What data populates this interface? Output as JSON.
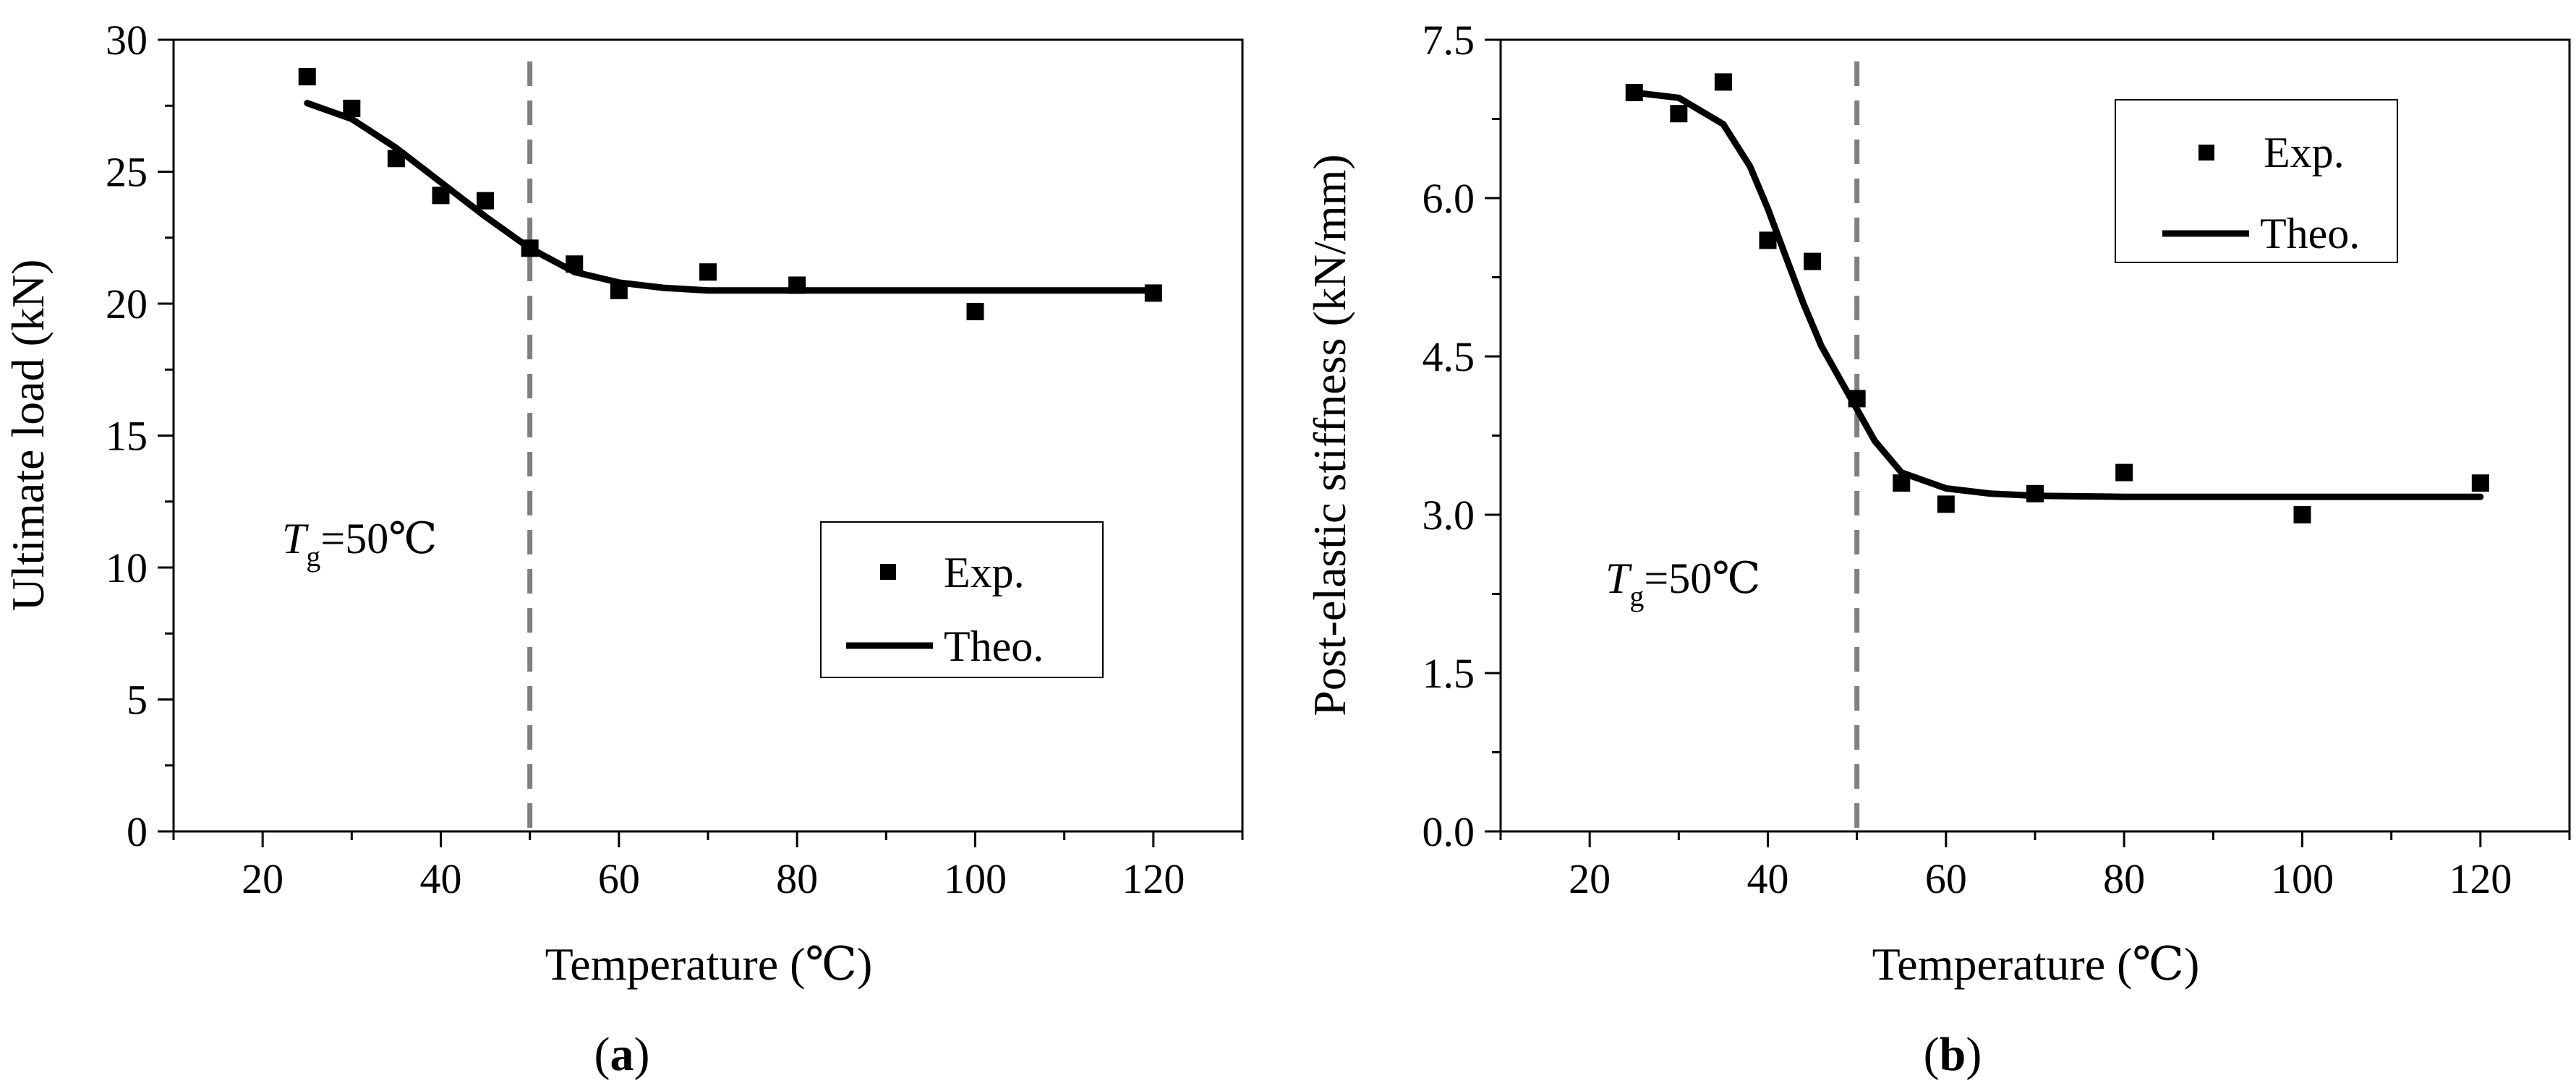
{
  "figure": {
    "charts": [
      {
        "id": "a",
        "panel_label": "(a)",
        "panel_letter": "a",
        "threshold_label": {
          "symbol": "T",
          "subscript": "g",
          "value_text": "=50℃"
        }
      },
      {
        "id": "b",
        "panel_label": "(b)",
        "panel_letter": "b",
        "threshold_label": {
          "symbol": "T",
          "subscript": "g",
          "value_text": "=50℃"
        }
      }
    ]
  },
  "chart_data": [
    {
      "type": "scatter",
      "title": "",
      "xlabel": "Temperature (℃)",
      "ylabel": "Ultimate load (kN)",
      "xlim": [
        10,
        130
      ],
      "ylim": [
        0,
        30
      ],
      "xticks": [
        20,
        40,
        60,
        80,
        100,
        120
      ],
      "xtick_labels": [
        "20",
        "40",
        "60",
        "80",
        "100",
        "120"
      ],
      "yticks": [
        0,
        5,
        10,
        15,
        20,
        25,
        30
      ],
      "ytick_labels": [
        "0",
        "5",
        "10",
        "15",
        "20",
        "25",
        "30"
      ],
      "grid": false,
      "legend_position": "middle-right",
      "threshold_x": 50,
      "series": [
        {
          "name": "Exp.",
          "kind": "scatter",
          "x": [
            25,
            30,
            35,
            40,
            45,
            50,
            55,
            60,
            70,
            80,
            100,
            120
          ],
          "y": [
            28.6,
            27.4,
            25.5,
            24.1,
            23.9,
            22.1,
            21.5,
            20.5,
            21.2,
            20.7,
            19.7,
            20.4
          ]
        },
        {
          "name": "Theo.",
          "kind": "line",
          "x": [
            25,
            30,
            35,
            40,
            45,
            50,
            55,
            60,
            65,
            70,
            80,
            90,
            100,
            110,
            120
          ],
          "y": [
            27.6,
            27.0,
            25.9,
            24.6,
            23.3,
            22.1,
            21.2,
            20.8,
            20.6,
            20.5,
            20.5,
            20.5,
            20.5,
            20.5,
            20.5
          ]
        }
      ]
    },
    {
      "type": "scatter",
      "title": "",
      "xlabel": "Temperature (℃)",
      "ylabel": "Post-elastic stiffness (kN/mm)",
      "xlim": [
        10,
        130
      ],
      "ylim": [
        0,
        7.5
      ],
      "xticks": [
        20,
        40,
        60,
        80,
        100,
        120
      ],
      "xtick_labels": [
        "20",
        "40",
        "60",
        "80",
        "100",
        "120"
      ],
      "yticks": [
        0,
        1.5,
        3.0,
        4.5,
        6.0,
        7.5
      ],
      "ytick_labels": [
        "0.0",
        "1.5",
        "3.0",
        "4.5",
        "6.0",
        "7.5"
      ],
      "grid": false,
      "legend_position": "top-right",
      "threshold_x": 50,
      "series": [
        {
          "name": "Exp.",
          "kind": "scatter",
          "x": [
            25,
            30,
            35,
            40,
            45,
            50,
            55,
            60,
            70,
            80,
            100,
            120
          ],
          "y": [
            7.0,
            6.8,
            7.1,
            5.6,
            5.4,
            4.1,
            3.3,
            3.1,
            3.2,
            3.4,
            3.0,
            3.3
          ]
        },
        {
          "name": "Theo.",
          "kind": "line",
          "x": [
            25,
            30,
            35,
            38,
            40,
            42,
            44,
            46,
            48,
            50,
            52,
            55,
            60,
            65,
            70,
            80,
            100,
            120
          ],
          "y": [
            7.0,
            6.95,
            6.7,
            6.3,
            5.9,
            5.45,
            5.0,
            4.6,
            4.3,
            4.0,
            3.7,
            3.4,
            3.25,
            3.2,
            3.18,
            3.17,
            3.17,
            3.17
          ]
        }
      ]
    }
  ]
}
